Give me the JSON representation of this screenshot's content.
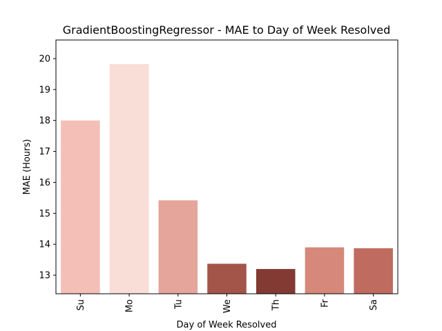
{
  "chart_data": {
    "type": "bar",
    "title": "GradientBoostingRegressor - MAE to Day of Week Resolved",
    "xlabel": "Day of Week Resolved",
    "ylabel": "MAE (Hours)",
    "categories": [
      "Su",
      "Mo",
      "Tu",
      "We",
      "Th",
      "Fr",
      "Sa"
    ],
    "values": [
      18.0,
      19.82,
      15.42,
      13.37,
      13.2,
      13.9,
      13.87
    ],
    "colors": [
      "#f3bfb6",
      "#f9ddd7",
      "#e5a59a",
      "#a35549",
      "#823a33",
      "#d6887a",
      "#bf6b5f"
    ],
    "ylim": [
      12.4,
      20.6
    ],
    "yticks": [
      13,
      14,
      15,
      16,
      17,
      18,
      19,
      20
    ],
    "grid": false,
    "legend": "none"
  }
}
